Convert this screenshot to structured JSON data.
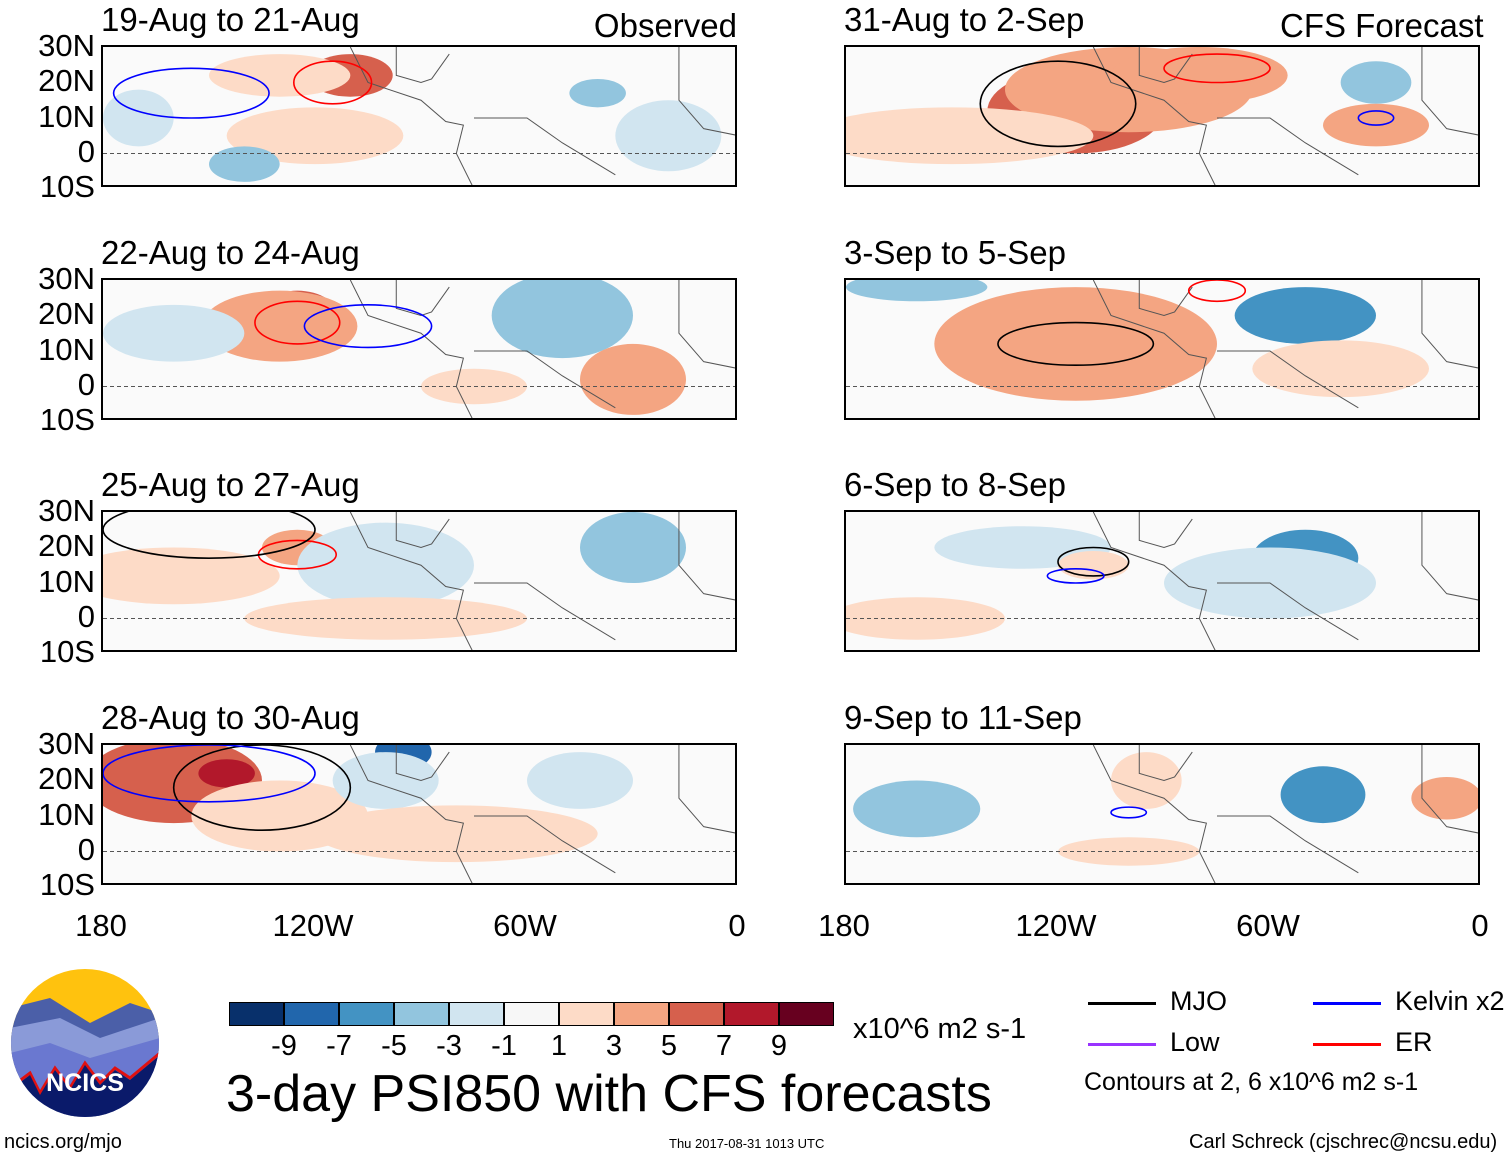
{
  "chart_data": {
    "type": "heatmap",
    "title": "3-day PSI850 with CFS forecasts",
    "variable": "PSI850 anomaly",
    "units": "x10^6 m2 s-1",
    "column_labels": {
      "observed": "Observed",
      "forecast": "CFS Forecast"
    },
    "lat_ticks": [
      "30N",
      "20N",
      "10N",
      "0",
      "10S"
    ],
    "lon_ticks": [
      "180",
      "120W",
      "60W",
      "0"
    ],
    "lat_range": [
      -10,
      30
    ],
    "lon_range": [
      -180,
      0
    ],
    "panels": [
      {
        "title": "19-Aug to 21-Aug",
        "type": "Observed"
      },
      {
        "title": "22-Aug to 24-Aug",
        "type": "Observed"
      },
      {
        "title": "25-Aug to 27-Aug",
        "type": "Observed"
      },
      {
        "title": "28-Aug to 30-Aug",
        "type": "Observed"
      },
      {
        "title": "31-Aug to 2-Sep",
        "type": "CFS Forecast"
      },
      {
        "title": "3-Sep to 5-Sep",
        "type": "CFS Forecast"
      },
      {
        "title": "6-Sep to 8-Sep",
        "type": "CFS Forecast"
      },
      {
        "title": "9-Sep to 11-Sep",
        "type": "CFS Forecast"
      }
    ],
    "colorbar": {
      "labels": [
        "-9",
        "-7",
        "-5",
        "-3",
        "-1",
        "1",
        "3",
        "5",
        "7",
        "9"
      ],
      "colors": [
        "#08306b",
        "#2166ac",
        "#4393c3",
        "#92c5de",
        "#d1e5f0",
        "#f7f7f7",
        "#fddbc7",
        "#f4a582",
        "#d6604d",
        "#b2182b",
        "#67001f"
      ],
      "units": "x10^6 m2 s-1"
    },
    "legend": [
      {
        "label": "MJO",
        "color": "#000000"
      },
      {
        "label": "Kelvin x2",
        "color": "#0000ff"
      },
      {
        "label": "Low",
        "color": "#9933ff"
      },
      {
        "label": "ER",
        "color": "#ff0000"
      }
    ],
    "contour_note": "Contours at 2, 6 x10^6 m2 s-1"
  },
  "footer": {
    "url": "ncics.org/mjo",
    "timestamp": "Thu 2017-08-31 1013 UTC",
    "credit": "Carl Schreck (cjschrec@ncsu.edu)",
    "logo_text": "NCICS"
  }
}
